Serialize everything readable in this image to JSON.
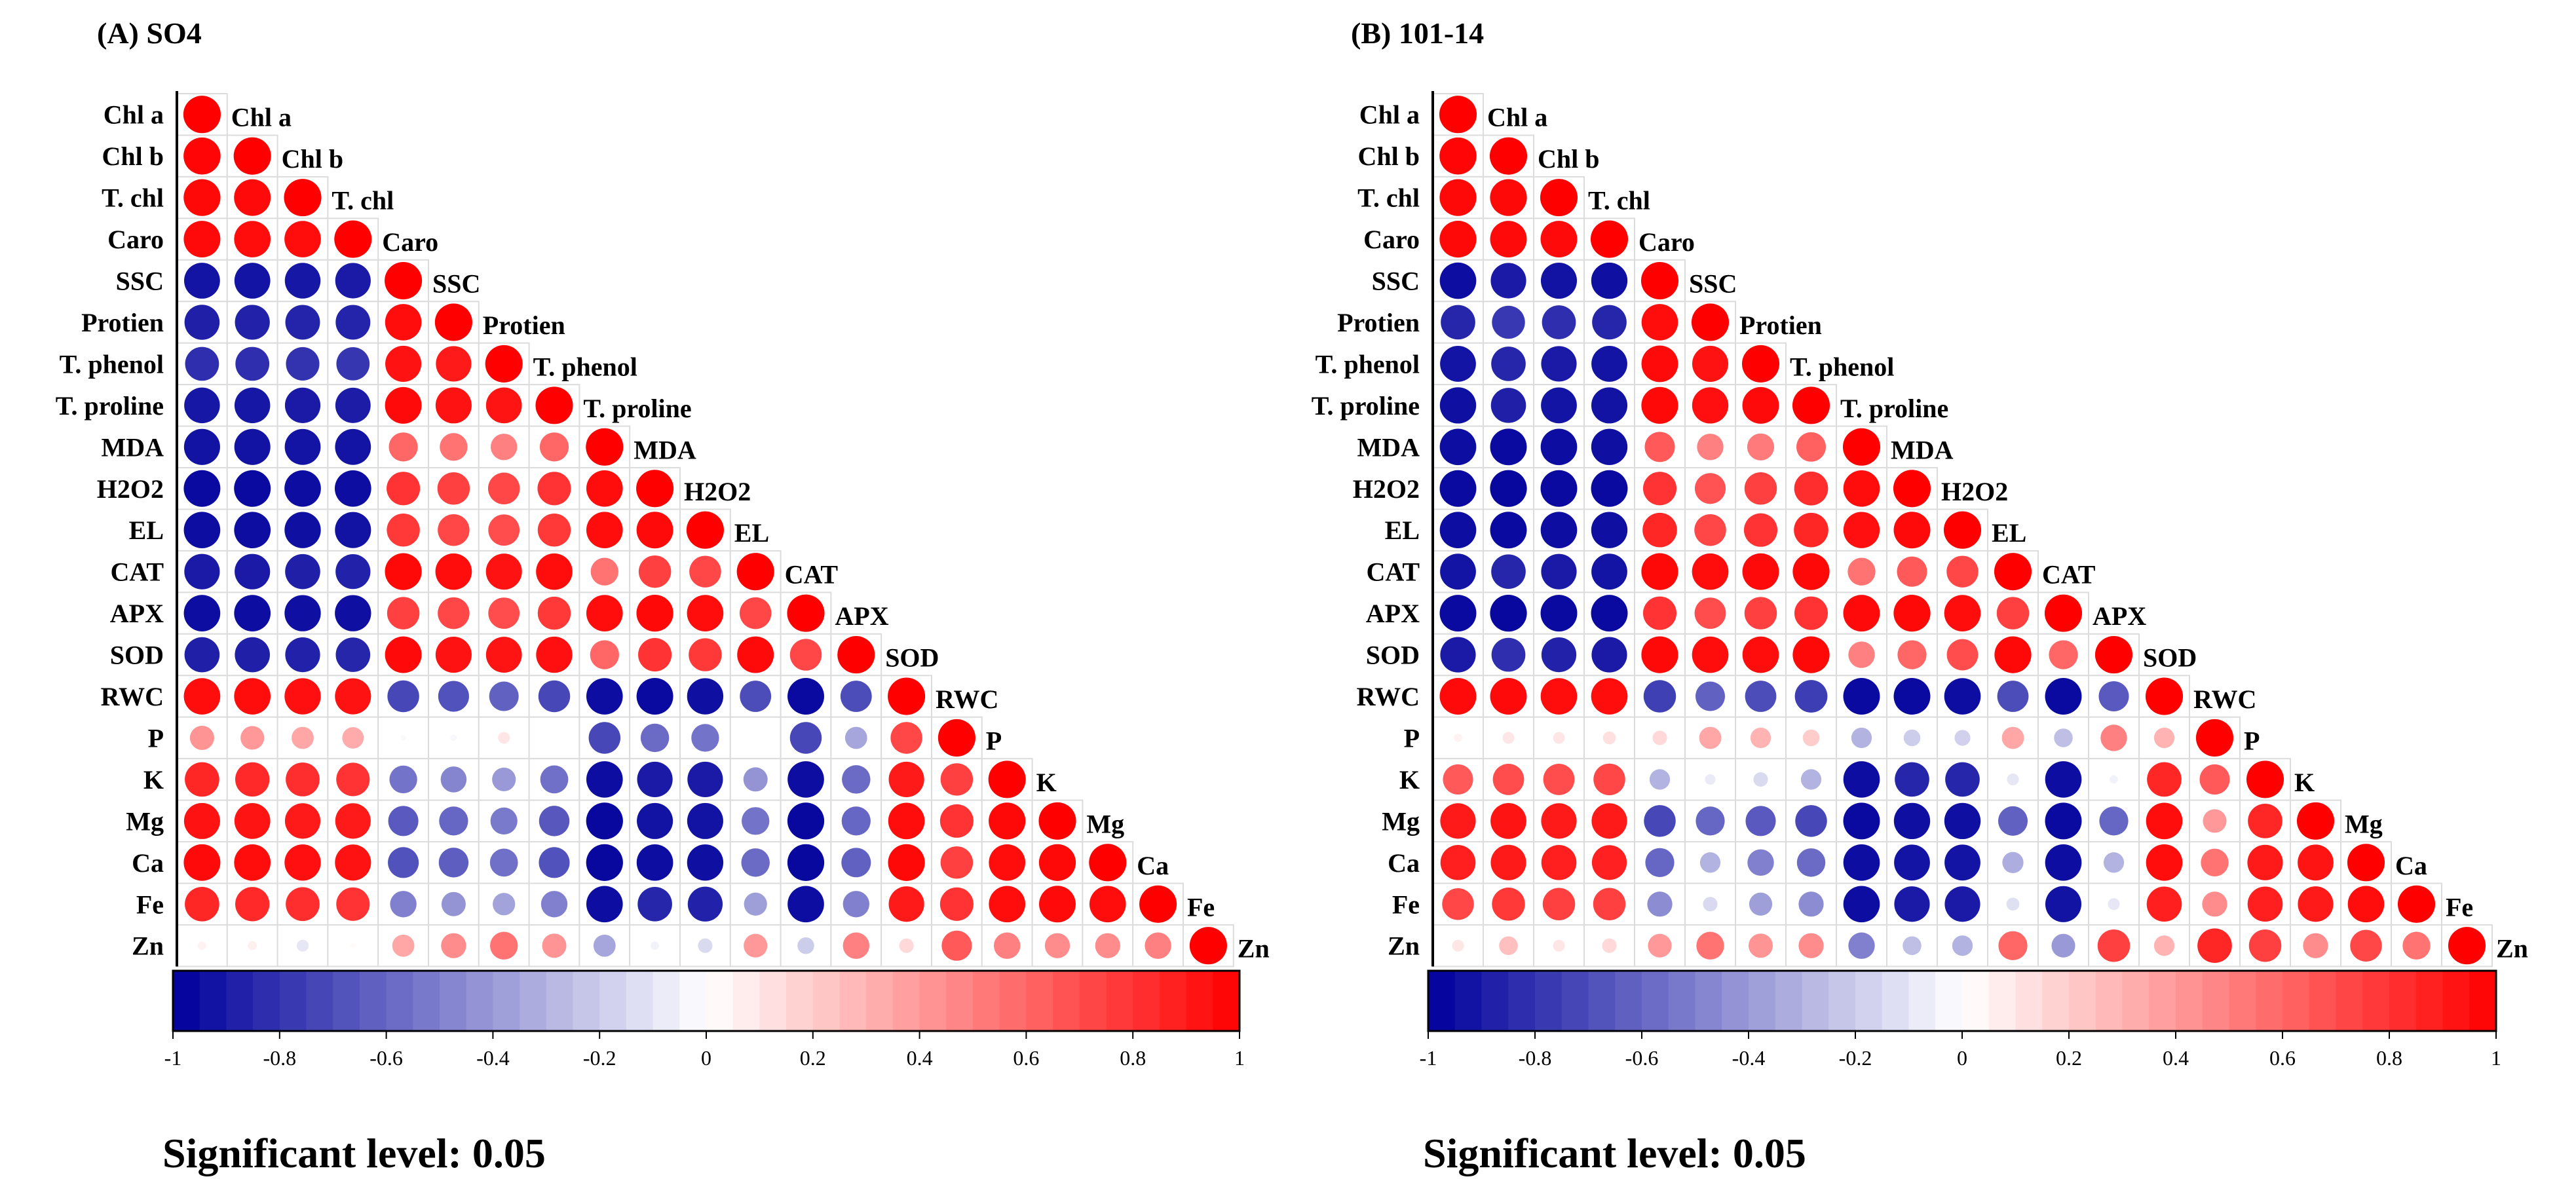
{
  "chart_data": [
    {
      "type": "heatmap",
      "subtype": "correlation-circle-lower-triangle",
      "title": "(A) SO4",
      "variables": [
        "Chl a",
        "Chl b",
        "T. chl",
        "Caro",
        "SSC",
        "Protien",
        "T. phenol",
        "T. proline",
        "MDA",
        "H2O2",
        "EL",
        "CAT",
        "APX",
        "SOD",
        "RWC",
        "P",
        "K",
        "Mg",
        "Ca",
        "Fe",
        "Zn"
      ],
      "correlation_lower": [
        [
          1
        ],
        [
          0.98,
          1
        ],
        [
          0.97,
          0.96,
          1
        ],
        [
          0.96,
          0.95,
          0.95,
          1
        ],
        [
          -0.92,
          -0.92,
          -0.91,
          -0.9,
          1
        ],
        [
          -0.88,
          -0.87,
          -0.86,
          -0.86,
          0.95,
          1
        ],
        [
          -0.82,
          -0.82,
          -0.8,
          -0.79,
          0.93,
          0.9,
          1
        ],
        [
          -0.91,
          -0.91,
          -0.9,
          -0.89,
          0.96,
          0.93,
          0.92,
          1
        ],
        [
          -0.93,
          -0.93,
          -0.92,
          -0.92,
          0.6,
          0.55,
          0.5,
          0.6,
          1
        ],
        [
          -0.96,
          -0.96,
          -0.95,
          -0.95,
          0.8,
          0.75,
          0.72,
          0.8,
          0.95,
          1
        ],
        [
          -0.95,
          -0.95,
          -0.94,
          -0.93,
          0.78,
          0.72,
          0.7,
          0.78,
          0.95,
          0.96,
          1
        ],
        [
          -0.9,
          -0.9,
          -0.88,
          -0.87,
          0.97,
          0.95,
          0.93,
          0.95,
          0.55,
          0.75,
          0.72,
          1
        ],
        [
          -0.95,
          -0.95,
          -0.94,
          -0.94,
          0.75,
          0.72,
          0.7,
          0.78,
          0.95,
          0.97,
          0.95,
          0.72,
          1
        ],
        [
          -0.88,
          -0.88,
          -0.87,
          -0.85,
          0.96,
          0.93,
          0.92,
          0.94,
          0.6,
          0.8,
          0.78,
          0.96,
          0.72,
          1
        ],
        [
          0.95,
          0.95,
          0.94,
          0.93,
          -0.72,
          -0.68,
          -0.62,
          -0.72,
          -0.95,
          -0.96,
          -0.94,
          -0.7,
          -0.96,
          -0.7,
          1
        ],
        [
          0.42,
          0.4,
          0.35,
          0.33,
          -0.02,
          -0.03,
          0.1,
          0,
          -0.72,
          -0.58,
          -0.55,
          0,
          -0.72,
          -0.35,
          0.72,
          1
        ],
        [
          0.85,
          0.84,
          0.82,
          0.8,
          -0.55,
          -0.48,
          -0.4,
          -0.56,
          -0.95,
          -0.9,
          -0.9,
          -0.42,
          -0.95,
          -0.58,
          0.9,
          0.75,
          1
        ],
        [
          0.93,
          0.92,
          0.9,
          0.9,
          -0.65,
          -0.6,
          -0.52,
          -0.66,
          -0.97,
          -0.93,
          -0.93,
          -0.55,
          -0.97,
          -0.6,
          0.95,
          0.8,
          0.97,
          1
        ],
        [
          0.96,
          0.95,
          0.94,
          0.93,
          -0.68,
          -0.63,
          -0.56,
          -0.68,
          -0.97,
          -0.95,
          -0.94,
          -0.58,
          -0.97,
          -0.62,
          0.97,
          0.75,
          0.95,
          0.97,
          1
        ],
        [
          0.85,
          0.84,
          0.82,
          0.8,
          -0.5,
          -0.42,
          -0.36,
          -0.5,
          -0.95,
          -0.85,
          -0.87,
          -0.38,
          -0.95,
          -0.5,
          0.9,
          0.8,
          0.95,
          0.96,
          0.95,
          1
        ],
        [
          0.05,
          0.06,
          -0.1,
          0.02,
          0.35,
          0.45,
          0.55,
          0.42,
          -0.35,
          -0.05,
          -0.15,
          0.4,
          -0.2,
          0.5,
          0.15,
          0.65,
          0.5,
          0.45,
          0.45,
          0.5,
          1
        ]
      ],
      "colorbar": {
        "min": -1,
        "max": 1,
        "ticks": [
          "-1",
          "-0.8",
          "-0.6",
          "-0.4",
          "-0.2",
          "0",
          "0.2",
          "0.4",
          "0.6",
          "0.8",
          "1"
        ],
        "low_color": "#00009c",
        "mid_color": "#ffffff",
        "high_color": "#ff0000"
      },
      "footnote": "Significant level: 0.05"
    },
    {
      "type": "heatmap",
      "subtype": "correlation-circle-lower-triangle",
      "title": "(B) 101-14",
      "variables": [
        "Chl a",
        "Chl b",
        "T. chl",
        "Caro",
        "SSC",
        "Protien",
        "T. phenol",
        "T. proline",
        "MDA",
        "H2O2",
        "EL",
        "CAT",
        "APX",
        "SOD",
        "RWC",
        "P",
        "K",
        "Mg",
        "Ca",
        "Fe",
        "Zn"
      ],
      "correlation_lower": [
        [
          1
        ],
        [
          0.98,
          1
        ],
        [
          0.97,
          0.97,
          1
        ],
        [
          0.97,
          0.96,
          0.96,
          1
        ],
        [
          -0.95,
          -0.9,
          -0.93,
          -0.94,
          1
        ],
        [
          -0.85,
          -0.78,
          -0.82,
          -0.85,
          0.95,
          1
        ],
        [
          -0.92,
          -0.85,
          -0.9,
          -0.92,
          0.96,
          0.93,
          1
        ],
        [
          -0.94,
          -0.88,
          -0.92,
          -0.93,
          0.97,
          0.94,
          0.96,
          1
        ],
        [
          -0.95,
          -0.96,
          -0.95,
          -0.94,
          0.65,
          0.5,
          0.52,
          0.62,
          1
        ],
        [
          -0.96,
          -0.97,
          -0.96,
          -0.96,
          0.8,
          0.68,
          0.75,
          0.82,
          0.95,
          1
        ],
        [
          -0.95,
          -0.96,
          -0.95,
          -0.94,
          0.85,
          0.72,
          0.8,
          0.85,
          0.94,
          0.96,
          1
        ],
        [
          -0.92,
          -0.85,
          -0.9,
          -0.92,
          0.97,
          0.95,
          0.96,
          0.97,
          0.55,
          0.65,
          0.72,
          1
        ],
        [
          -0.96,
          -0.97,
          -0.96,
          -0.96,
          0.8,
          0.7,
          0.75,
          0.8,
          0.96,
          0.97,
          0.95,
          0.75,
          1
        ],
        [
          -0.9,
          -0.82,
          -0.87,
          -0.9,
          0.97,
          0.95,
          0.95,
          0.97,
          0.5,
          0.6,
          0.7,
          0.97,
          0.6,
          1
        ],
        [
          0.96,
          0.96,
          0.95,
          0.95,
          -0.75,
          -0.62,
          -0.7,
          -0.76,
          -0.96,
          -0.96,
          -0.95,
          -0.7,
          -0.96,
          -0.65,
          1
        ],
        [
          0.05,
          0.1,
          0.1,
          0.12,
          0.15,
          0.35,
          0.3,
          0.2,
          -0.3,
          -0.2,
          -0.18,
          0.35,
          -0.25,
          0.5,
          0.3,
          1
        ],
        [
          0.65,
          0.7,
          0.7,
          0.72,
          -0.3,
          -0.08,
          -0.15,
          -0.3,
          -0.95,
          -0.85,
          -0.85,
          -0.1,
          -0.95,
          -0.05,
          0.85,
          0.65,
          1
        ],
        [
          0.9,
          0.92,
          0.9,
          0.9,
          -0.72,
          -0.6,
          -0.65,
          -0.72,
          -0.96,
          -0.94,
          -0.94,
          -0.62,
          -0.96,
          -0.6,
          0.95,
          0.4,
          0.85,
          1
        ],
        [
          0.88,
          0.9,
          0.88,
          0.87,
          -0.6,
          -0.3,
          -0.5,
          -0.58,
          -0.95,
          -0.92,
          -0.92,
          -0.32,
          -0.95,
          -0.3,
          0.95,
          0.55,
          0.9,
          0.92,
          1
        ],
        [
          0.72,
          0.78,
          0.75,
          0.75,
          -0.45,
          -0.15,
          -0.38,
          -0.45,
          -0.95,
          -0.9,
          -0.9,
          -0.12,
          -0.93,
          -0.1,
          0.88,
          0.45,
          0.88,
          0.9,
          0.95,
          1
        ],
        [
          0.1,
          0.25,
          0.1,
          0.15,
          0.4,
          0.55,
          0.42,
          0.45,
          -0.5,
          -0.25,
          -0.3,
          0.6,
          -0.4,
          0.75,
          0.3,
          0.85,
          0.75,
          0.45,
          0.72,
          0.55,
          1
        ]
      ],
      "colorbar": {
        "min": -1,
        "max": 1,
        "ticks": [
          "-1",
          "-0.8",
          "-0.6",
          "-0.4",
          "-0.2",
          "0",
          "0.2",
          "0.4",
          "0.6",
          "0.8",
          "1"
        ],
        "low_color": "#00009c",
        "mid_color": "#ffffff",
        "high_color": "#ff0000"
      },
      "footnote": "Significant level: 0.05"
    }
  ]
}
